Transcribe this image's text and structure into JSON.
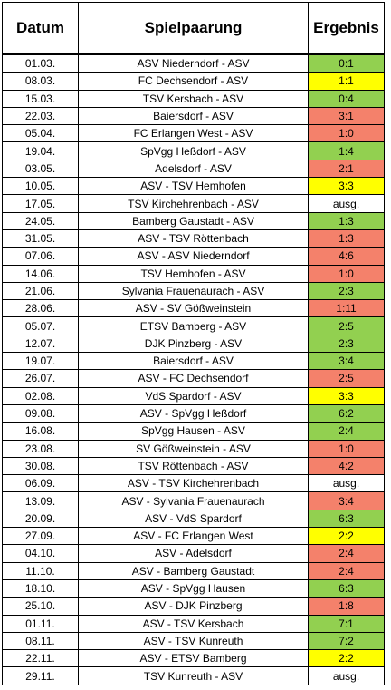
{
  "header": {
    "date": "Datum",
    "match": "Spielpaarung",
    "result": "Ergebnis"
  },
  "colors": {
    "win": "#92d050",
    "draw": "#ffff00",
    "loss": "#f4816b",
    "none": "#ffffff"
  },
  "rows": [
    {
      "date": "01.03.",
      "match": "ASV Niederndorf - ASV",
      "result": "0:1",
      "status": "win"
    },
    {
      "date": "08.03.",
      "match": "FC Dechsendorf - ASV",
      "result": "1:1",
      "status": "draw"
    },
    {
      "date": "15.03.",
      "match": "TSV Kersbach - ASV",
      "result": "0:4",
      "status": "win"
    },
    {
      "date": "22.03.",
      "match": "Baiersdorf - ASV",
      "result": "3:1",
      "status": "loss"
    },
    {
      "date": "05.04.",
      "match": "FC Erlangen West - ASV",
      "result": "1:0",
      "status": "loss"
    },
    {
      "date": "19.04.",
      "match": "SpVgg Heßdorf - ASV",
      "result": "1:4",
      "status": "win"
    },
    {
      "date": "03.05.",
      "match": "Adelsdorf - ASV",
      "result": "2:1",
      "status": "loss"
    },
    {
      "date": "10.05.",
      "match": "ASV - TSV Hemhofen",
      "result": "3:3",
      "status": "draw"
    },
    {
      "date": "17.05.",
      "match": "TSV Kirchehrenbach - ASV",
      "result": "ausg.",
      "status": "none"
    },
    {
      "date": "24.05.",
      "match": "Bamberg Gaustadt - ASV",
      "result": "1:3",
      "status": "win"
    },
    {
      "date": "31.05.",
      "match": "ASV - TSV Röttenbach",
      "result": "1:3",
      "status": "loss"
    },
    {
      "date": "07.06.",
      "match": "ASV - ASV Niederndorf",
      "result": "4:6",
      "status": "loss"
    },
    {
      "date": "14.06.",
      "match": "TSV Hemhofen - ASV",
      "result": "1:0",
      "status": "loss"
    },
    {
      "date": "21.06.",
      "match": "Sylvania Frauenaurach - ASV",
      "result": "2:3",
      "status": "win"
    },
    {
      "date": "28.06.",
      "match": "ASV - SV Gößweinstein",
      "result": "1:11",
      "status": "loss"
    },
    {
      "date": "05.07.",
      "match": "ETSV Bamberg - ASV",
      "result": "2:5",
      "status": "win"
    },
    {
      "date": "12.07.",
      "match": "DJK Pinzberg - ASV",
      "result": "2:3",
      "status": "win"
    },
    {
      "date": "19.07.",
      "match": "Baiersdorf - ASV",
      "result": "3:4",
      "status": "win"
    },
    {
      "date": "26.07.",
      "match": "ASV - FC Dechsendorf",
      "result": "2:5",
      "status": "loss"
    },
    {
      "date": "02.08.",
      "match": "VdS Spardorf - ASV",
      "result": "3:3",
      "status": "draw"
    },
    {
      "date": "09.08.",
      "match": "ASV - SpVgg Heßdorf",
      "result": "6:2",
      "status": "win"
    },
    {
      "date": "16.08.",
      "match": "SpVgg Hausen - ASV",
      "result": "2:4",
      "status": "win"
    },
    {
      "date": "23.08.",
      "match": "SV Gößweinstein - ASV",
      "result": "1:0",
      "status": "loss"
    },
    {
      "date": "30.08.",
      "match": "TSV Röttenbach - ASV",
      "result": "4:2",
      "status": "loss"
    },
    {
      "date": "06.09.",
      "match": "ASV - TSV Kirchehrenbach",
      "result": "ausg.",
      "status": "none"
    },
    {
      "date": "13.09.",
      "match": "ASV - Sylvania Frauenaurach",
      "result": "3:4",
      "status": "loss"
    },
    {
      "date": "20.09.",
      "match": "ASV - VdS Spardorf",
      "result": "6:3",
      "status": "win"
    },
    {
      "date": "27.09.",
      "match": "ASV - FC Erlangen West",
      "result": "2:2",
      "status": "draw"
    },
    {
      "date": "04.10.",
      "match": "ASV - Adelsdorf",
      "result": "2:4",
      "status": "loss"
    },
    {
      "date": "11.10.",
      "match": "ASV - Bamberg Gaustadt",
      "result": "2:4",
      "status": "loss"
    },
    {
      "date": "18.10.",
      "match": "ASV - SpVgg Hausen",
      "result": "6:3",
      "status": "win"
    },
    {
      "date": "25.10.",
      "match": "ASV - DJK Pinzberg",
      "result": "1:8",
      "status": "loss"
    },
    {
      "date": "01.11.",
      "match": "ASV - TSV Kersbach",
      "result": "7:1",
      "status": "win"
    },
    {
      "date": "08.11.",
      "match": "ASV - TSV Kunreuth",
      "result": "7:2",
      "status": "win"
    },
    {
      "date": "22.11.",
      "match": "ASV - ETSV Bamberg",
      "result": "2:2",
      "status": "draw"
    },
    {
      "date": "29.11.",
      "match": "TSV Kunreuth - ASV",
      "result": "ausg.",
      "status": "none"
    }
  ]
}
